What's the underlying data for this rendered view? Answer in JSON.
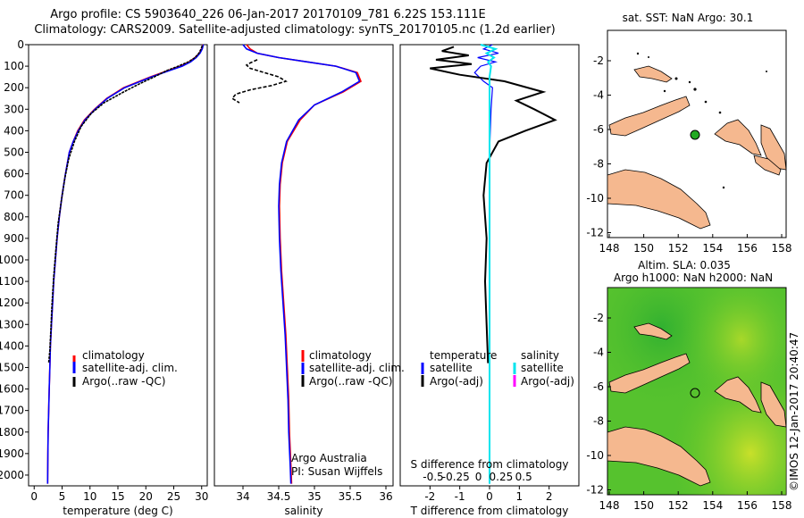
{
  "header": {
    "line1": "Argo profile: CS 5903640_226 06-Jan-2017 20170109_781 6.22S 153.111E",
    "line2": "Climatology: CARS2009. Satellite-adjusted climatology: synTS_20170105.nc (1.2d earlier)"
  },
  "credit": "©IMOS 12-Jan-2017 20:40:47",
  "colors": {
    "climatology": "#ff0000",
    "satellite": "#0000ff",
    "argo": "#000000",
    "salinity_satellite": "#00e5ee",
    "salinity_argo": "#ff00ff",
    "land": "#f5b88f",
    "float_marker": "#22aa22"
  },
  "chart_data": [
    {
      "id": "temperature",
      "type": "line",
      "xlabel": "temperature (deg C)",
      "ylabel": "",
      "xlim": [
        -1,
        31
      ],
      "ylim": [
        2050,
        0
      ],
      "xticks": [
        0,
        5,
        10,
        15,
        20,
        25,
        30
      ],
      "yticks": [
        0,
        100,
        200,
        300,
        400,
        500,
        600,
        700,
        800,
        900,
        1000,
        1100,
        1200,
        1300,
        1400,
        1500,
        1600,
        1700,
        1800,
        1900,
        2000
      ],
      "legend": [
        "climatology",
        "satellite-adj. clim.",
        "Argo(..raw -QC)"
      ],
      "series": [
        {
          "name": "climatology",
          "x": [
            30.2,
            30.0,
            29.6,
            28.8,
            27.8,
            26.2,
            24.0,
            20.8,
            16.0,
            13.0,
            10.8,
            9.0,
            7.8,
            7.0,
            6.3,
            5.6,
            5.0,
            4.5,
            4.1,
            3.8,
            3.5,
            3.3,
            3.1,
            2.9,
            2.8,
            2.7,
            2.6,
            2.5,
            2.45,
            2.4
          ],
          "y": [
            0,
            20,
            40,
            60,
            80,
            100,
            120,
            150,
            200,
            250,
            300,
            350,
            400,
            450,
            500,
            600,
            700,
            800,
            900,
            1000,
            1100,
            1200,
            1300,
            1400,
            1500,
            1600,
            1700,
            1800,
            1900,
            2040
          ]
        },
        {
          "name": "satellite-adj. clim.",
          "x": [
            30.3,
            30.1,
            29.7,
            29.0,
            28.0,
            26.5,
            24.3,
            21.0,
            16.2,
            13.1,
            10.9,
            9.1,
            7.9,
            7.0,
            6.3,
            5.6,
            5.0,
            4.5,
            4.1,
            3.8,
            3.5,
            3.3,
            3.1,
            2.9,
            2.8,
            2.7,
            2.6,
            2.5,
            2.45,
            2.4
          ],
          "y": [
            0,
            20,
            40,
            60,
            80,
            100,
            120,
            150,
            200,
            250,
            300,
            350,
            400,
            450,
            500,
            600,
            700,
            800,
            900,
            1000,
            1100,
            1200,
            1300,
            1400,
            1500,
            1600,
            1700,
            1800,
            1900,
            2040
          ]
        },
        {
          "name": "Argo(..raw -QC)",
          "x": [
            30.1,
            29.9,
            29.5,
            28.8,
            27.6,
            25.8,
            23.8,
            21.5,
            19.0,
            16.0,
            12.5,
            10.2,
            8.4,
            7.2,
            6.2,
            5.5,
            4.9,
            4.3,
            3.9,
            3.5,
            3.2,
            3.0,
            2.8,
            2.6
          ],
          "y": [
            5,
            20,
            40,
            60,
            80,
            100,
            120,
            150,
            180,
            220,
            270,
            320,
            380,
            450,
            530,
            620,
            720,
            830,
            950,
            1080,
            1200,
            1320,
            1420,
            1480
          ]
        }
      ]
    },
    {
      "id": "salinity",
      "type": "line",
      "xlabel": "salinity",
      "xlim": [
        33.6,
        36.1
      ],
      "ylim": [
        2050,
        0
      ],
      "xticks": [
        34,
        34.5,
        35,
        35.5,
        36
      ],
      "legend": [
        "climatology",
        "satellite-adj. clim.",
        "Argo(..raw -QC)"
      ],
      "annotation": [
        "Argo Australia",
        "PI: Susan Wijffels"
      ],
      "series": [
        {
          "name": "climatology",
          "x": [
            34.05,
            34.1,
            34.2,
            34.5,
            34.9,
            35.3,
            35.6,
            35.65,
            35.4,
            35.0,
            34.8,
            34.62,
            34.55,
            34.52,
            34.51,
            34.52,
            34.54,
            34.57,
            34.6,
            34.62,
            34.64,
            34.65,
            34.67,
            34.68
          ],
          "y": [
            0,
            20,
            40,
            60,
            80,
            100,
            130,
            170,
            220,
            280,
            350,
            450,
            550,
            650,
            750,
            900,
            1050,
            1200,
            1350,
            1500,
            1650,
            1800,
            1950,
            2040
          ]
        },
        {
          "name": "satellite-adj. clim.",
          "x": [
            34.0,
            34.05,
            34.2,
            34.5,
            34.9,
            35.3,
            35.58,
            35.63,
            35.38,
            35.0,
            34.78,
            34.61,
            34.54,
            34.51,
            34.5,
            34.51,
            34.53,
            34.56,
            34.59,
            34.61,
            34.63,
            34.64,
            34.66,
            34.67
          ],
          "y": [
            0,
            20,
            40,
            60,
            80,
            100,
            130,
            170,
            220,
            280,
            350,
            450,
            550,
            650,
            750,
            900,
            1050,
            1200,
            1350,
            1500,
            1650,
            1800,
            1950,
            2040
          ]
        },
        {
          "name": "Argo(..raw -QC)",
          "x": [
            34.2,
            34.1,
            34.05,
            34.1,
            34.3,
            34.5,
            34.6,
            34.4,
            34.1,
            33.9,
            33.85,
            33.95
          ],
          "y": [
            70,
            85,
            95,
            110,
            130,
            150,
            170,
            190,
            210,
            230,
            250,
            270
          ]
        }
      ]
    },
    {
      "id": "difference",
      "type": "line",
      "xlabel": "T difference from climatology",
      "xlabel2": "S difference from climatology",
      "xlim": [
        -3,
        3
      ],
      "ylim": [
        2050,
        0
      ],
      "xticks": [
        -2,
        -1,
        0,
        1,
        2
      ],
      "xticks2": [
        "-0.5",
        "-0.25",
        "0",
        "0.25",
        "0.5"
      ],
      "legend_left": [
        "temperature",
        "satellite",
        "Argo(-adj)"
      ],
      "legend_right": [
        "salinity",
        "satellite",
        "Argo(-adj)"
      ],
      "series": [
        {
          "name": "temperature satellite",
          "x": [
            0.1,
            -0.2,
            0.3,
            -0.4,
            0.2,
            -0.3,
            -0.5,
            -0.2,
            0.1,
            0.05,
            0,
            0,
            0,
            0,
            0,
            0
          ],
          "y": [
            0,
            20,
            40,
            60,
            80,
            100,
            130,
            170,
            200,
            300,
            500,
            800,
            1100,
            1500,
            1800,
            2040
          ]
        },
        {
          "name": "temperature Argo(-adj)",
          "x": [
            -1.2,
            -1.6,
            -0.7,
            -1.8,
            -0.6,
            -2.0,
            -1.0,
            0.5,
            1.8,
            0.9,
            1.5,
            2.2,
            1.2,
            0.3,
            -0.1,
            -0.2,
            -0.1,
            -0.15,
            -0.1,
            -0.05
          ],
          "y": [
            10,
            30,
            50,
            70,
            90,
            110,
            140,
            170,
            220,
            260,
            300,
            350,
            400,
            450,
            550,
            700,
            900,
            1100,
            1300,
            1480
          ]
        },
        {
          "name": "salinity satellite",
          "x": [
            -0.3,
            0.2,
            -0.1,
            0.15,
            -0.05,
            0.05,
            0,
            0,
            0,
            0,
            0
          ],
          "y": [
            0,
            20,
            40,
            60,
            80,
            100,
            150,
            300,
            800,
            1500,
            2040
          ]
        }
      ]
    }
  ],
  "sst_map": {
    "title": "sat. SST: NaN Argo: 30.1",
    "xticks": [
      "148",
      "150",
      "152",
      "154",
      "156",
      "158"
    ],
    "yticks": [
      "-2",
      "-4",
      "-6",
      "-8",
      "-10",
      "-12"
    ]
  },
  "sla_map": {
    "title1": "Altim. SLA: 0.035",
    "title2": "Argo h1000: NaN h2000: NaN",
    "xticks": [
      "148",
      "150",
      "152",
      "154",
      "156",
      "158"
    ],
    "yticks": [
      "-2",
      "-4",
      "-6",
      "-8",
      "-10",
      "-12"
    ]
  }
}
